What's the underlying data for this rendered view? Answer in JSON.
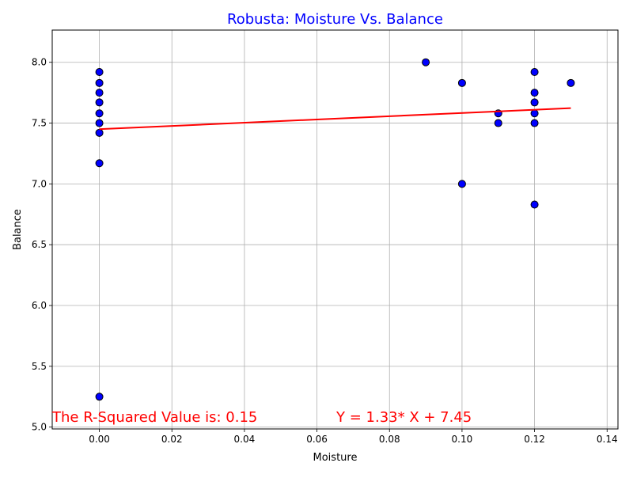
{
  "chart_data": {
    "type": "scatter",
    "title": "Robusta: Moisture Vs. Balance",
    "xlabel": "Moisture",
    "ylabel": "Balance",
    "xlim": [
      -0.013,
      0.143
    ],
    "ylim": [
      4.985,
      8.265
    ],
    "xticks": [
      0.0,
      0.02,
      0.04,
      0.06,
      0.08,
      0.1,
      0.12,
      0.14
    ],
    "xtick_labels": [
      "0.00",
      "0.02",
      "0.04",
      "0.06",
      "0.08",
      "0.10",
      "0.12",
      "0.14"
    ],
    "yticks": [
      5.0,
      5.5,
      6.0,
      6.5,
      7.0,
      7.5,
      8.0
    ],
    "ytick_labels": [
      "5.0",
      "5.5",
      "6.0",
      "6.5",
      "7.0",
      "7.5",
      "8.0"
    ],
    "grid": true,
    "colors": {
      "title": "#0000ff",
      "points": "#0000ff",
      "point_edge": "#000000",
      "regression": "#ff0000",
      "annotation": "#ff0000",
      "grid": "#b0b0b0"
    },
    "points": [
      {
        "x": 0.0,
        "y": 7.92
      },
      {
        "x": 0.0,
        "y": 7.83
      },
      {
        "x": 0.0,
        "y": 7.75
      },
      {
        "x": 0.0,
        "y": 7.67
      },
      {
        "x": 0.0,
        "y": 7.58
      },
      {
        "x": 0.0,
        "y": 7.5
      },
      {
        "x": 0.0,
        "y": 7.42
      },
      {
        "x": 0.0,
        "y": 7.17
      },
      {
        "x": 0.0,
        "y": 5.25
      },
      {
        "x": 0.09,
        "y": 8.0
      },
      {
        "x": 0.1,
        "y": 7.83
      },
      {
        "x": 0.1,
        "y": 7.0
      },
      {
        "x": 0.11,
        "y": 7.58
      },
      {
        "x": 0.11,
        "y": 7.5
      },
      {
        "x": 0.12,
        "y": 7.92
      },
      {
        "x": 0.12,
        "y": 7.75
      },
      {
        "x": 0.12,
        "y": 7.67
      },
      {
        "x": 0.12,
        "y": 7.58
      },
      {
        "x": 0.12,
        "y": 7.5
      },
      {
        "x": 0.12,
        "y": 6.83
      },
      {
        "x": 0.13,
        "y": 7.83
      }
    ],
    "regression": {
      "slope": 1.33,
      "intercept": 7.45,
      "x_range": [
        0.0,
        0.13
      ]
    },
    "annotations": {
      "r_squared": "The R-Squared Value is: 0.15",
      "equation": "Y = 1.33* X + 7.45"
    }
  }
}
